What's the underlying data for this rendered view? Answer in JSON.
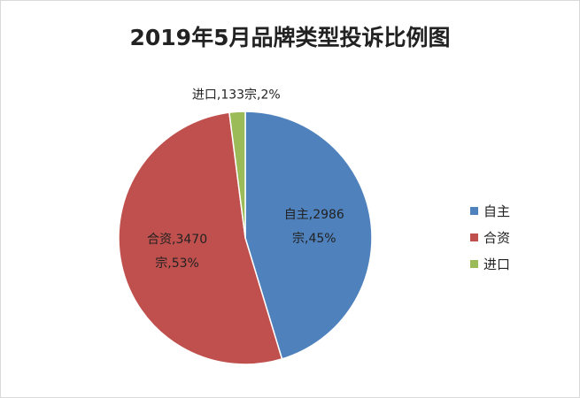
{
  "chart_data": {
    "type": "pie",
    "title": "2019年5月品牌类型投诉比例图",
    "categories": [
      "自主",
      "合资",
      "进口"
    ],
    "values": [
      2986,
      3470,
      133
    ],
    "value_labels": [
      "自主,2986宗,45%",
      "合资,3470宗,53%",
      "进口,133宗,2%"
    ],
    "colors": [
      "#4f81bd",
      "#c0504d",
      "#9bbb59"
    ],
    "legend": "right"
  }
}
